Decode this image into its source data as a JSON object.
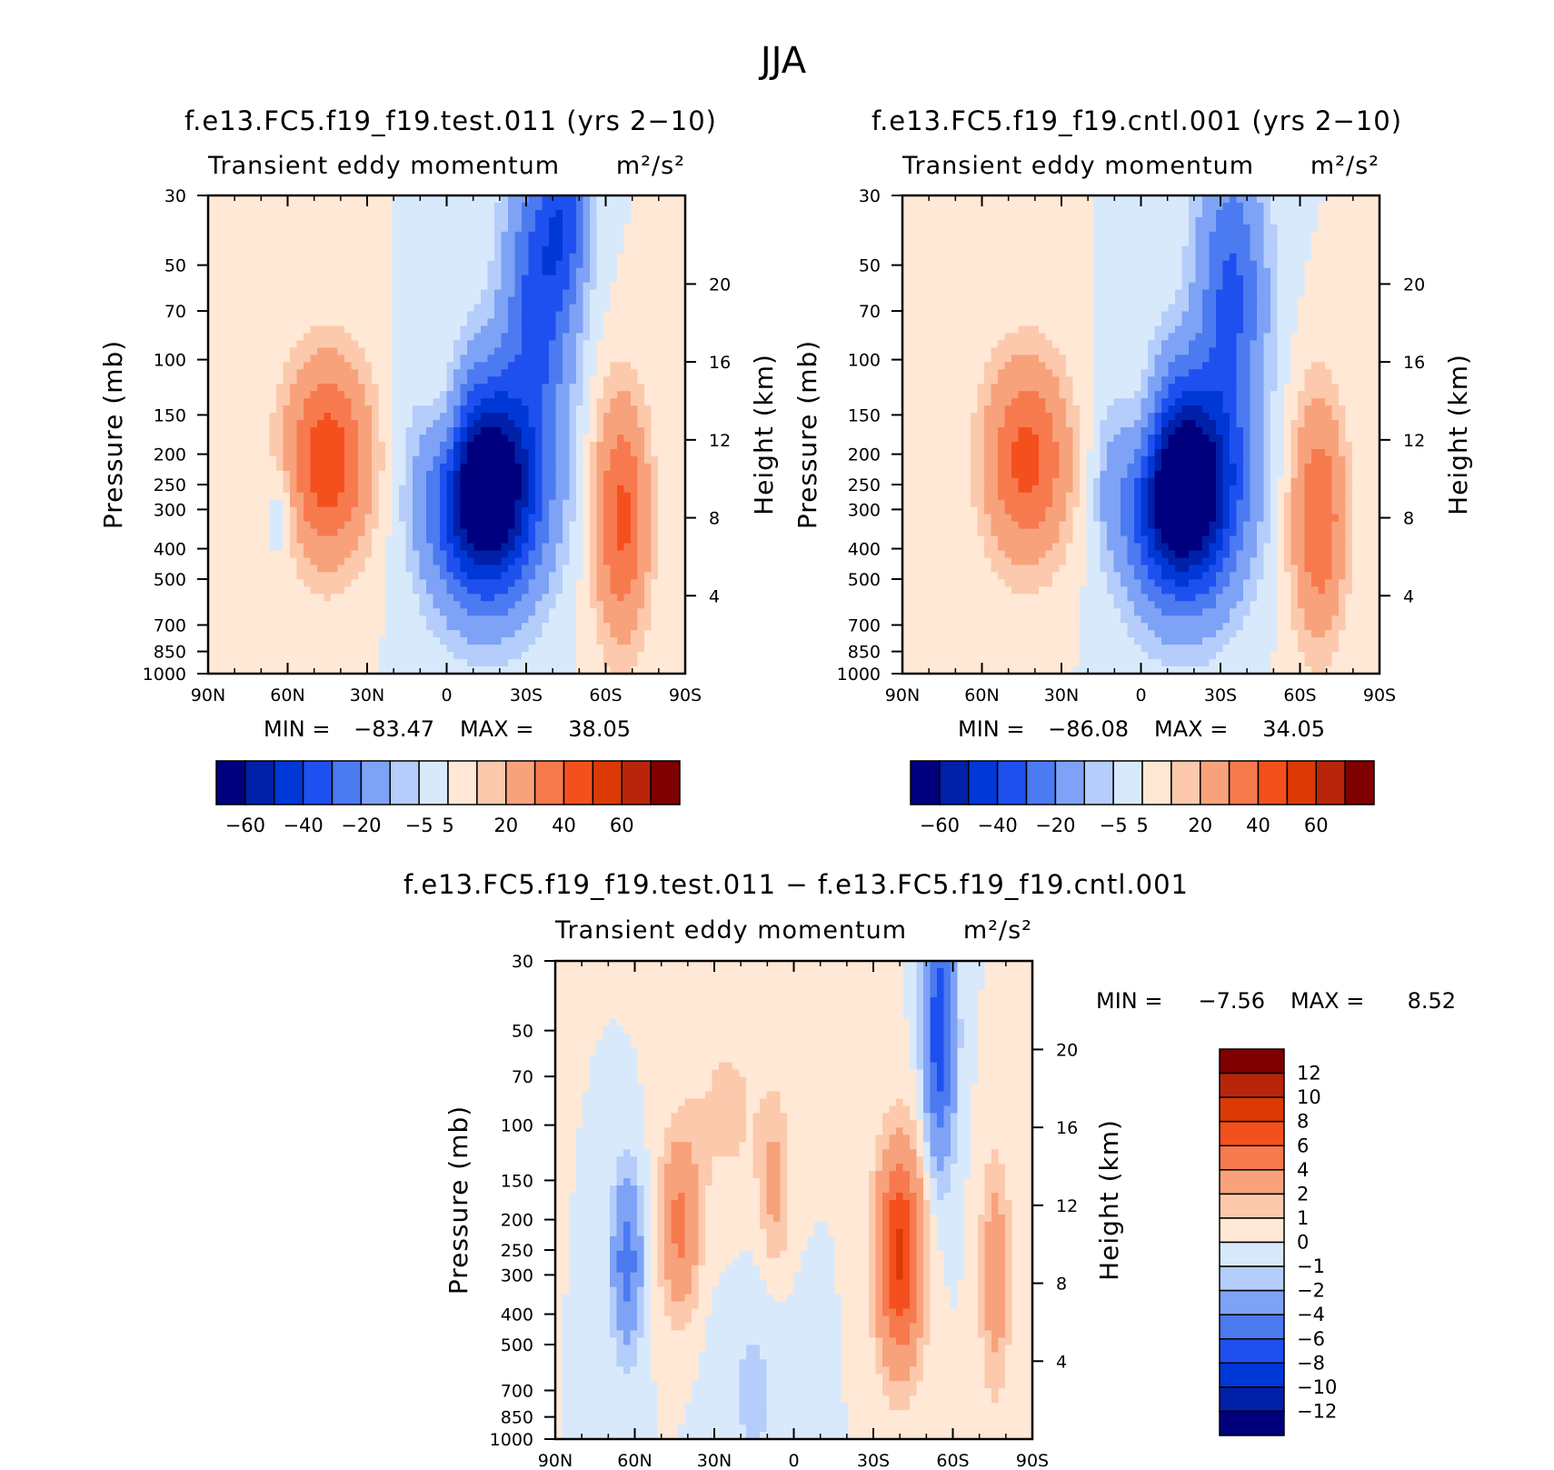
{
  "figure_title": "JJA",
  "colors": {
    "diverging_17": [
      "#00007f",
      "#0020a8",
      "#0038d8",
      "#1e50f0",
      "#4c7af0",
      "#7ea2f5",
      "#b4cdfa",
      "#d9e9fc",
      "#ffe8d5",
      "#fcc9ad",
      "#f8a27c",
      "#f77a4e",
      "#f4501e",
      "#dc3a05",
      "#b8250a",
      "#7f0000"
    ]
  },
  "chart_data": [
    {
      "type": "contour",
      "id": "test",
      "title": "f.e13.FC5.f19_f19.test.011 (yrs 2−10)",
      "subtitle_left": "Transient eddy momentum",
      "units": "m²/s²",
      "ylabel_left": "Pressure (mb)",
      "ylabel_right": "Height (km)",
      "xticks": [
        "90N",
        "60N",
        "30N",
        "0",
        "30S",
        "60S",
        "90S"
      ],
      "yticks_pressure": [
        30,
        50,
        70,
        100,
        150,
        200,
        250,
        300,
        400,
        500,
        700,
        850,
        1000
      ],
      "yticks_height": [
        20,
        16,
        12,
        8,
        4
      ],
      "min_label": "MIN =",
      "min_value": "−83.47",
      "max_label": "MAX =",
      "max_value": "38.05",
      "colorbar_orientation": "horizontal",
      "colorbar_labels": [
        "−60",
        "−40",
        "−20",
        "−5",
        "5",
        "20",
        "40",
        "60"
      ],
      "features": [
        {
          "lat": -15,
          "p": 260,
          "amp": -85,
          "sx": 14,
          "sy": 0.55
        },
        {
          "lat": -35,
          "p": 60,
          "amp": -35,
          "sx": 9,
          "sy": 0.7
        },
        {
          "lat": -45,
          "p": 35,
          "amp": -25,
          "sx": 6,
          "sy": 0.4
        },
        {
          "lat": 45,
          "p": 210,
          "amp": 38,
          "sx": 11,
          "sy": 0.5
        },
        {
          "lat": -66,
          "p": 320,
          "amp": 33,
          "sx": 7,
          "sy": 0.6
        },
        {
          "lat": 0,
          "p": 160,
          "amp": 16,
          "sx": 6,
          "sy": 0.38
        },
        {
          "lat": 62,
          "p": 300,
          "amp": -9,
          "sx": 4,
          "sy": 0.25
        }
      ]
    },
    {
      "type": "contour",
      "id": "cntl",
      "title": "f.e13.FC5.f19_f19.cntl.001 (yrs 2−10)",
      "subtitle_left": "Transient eddy momentum",
      "units": "m²/s²",
      "ylabel_left": "Pressure (mb)",
      "ylabel_right": "Height (km)",
      "xticks": [
        "90N",
        "60N",
        "30N",
        "0",
        "30S",
        "60S",
        "90S"
      ],
      "yticks_pressure": [
        30,
        50,
        70,
        100,
        150,
        200,
        250,
        300,
        400,
        500,
        700,
        850,
        1000
      ],
      "yticks_height": [
        20,
        16,
        12,
        8,
        4
      ],
      "min_label": "MIN =",
      "min_value": "−86.08",
      "max_label": "MAX =",
      "max_value": "34.05",
      "colorbar_orientation": "horizontal",
      "colorbar_labels": [
        "−60",
        "−40",
        "−20",
        "−5",
        "5",
        "20",
        "40",
        "60"
      ],
      "features": [
        {
          "lat": -16,
          "p": 260,
          "amp": -88,
          "sx": 14,
          "sy": 0.55
        },
        {
          "lat": -34,
          "p": 60,
          "amp": -32,
          "sx": 9,
          "sy": 0.7
        },
        {
          "lat": 43,
          "p": 210,
          "amp": 34,
          "sx": 11,
          "sy": 0.5
        },
        {
          "lat": -67,
          "p": 320,
          "amp": 30,
          "sx": 7,
          "sy": 0.6
        },
        {
          "lat": -1,
          "p": 165,
          "amp": 17,
          "sx": 6,
          "sy": 0.38
        },
        {
          "lat": 12,
          "p": 260,
          "amp": -5,
          "sx": 3,
          "sy": 0.3
        }
      ]
    },
    {
      "type": "contour",
      "id": "diff",
      "title": "f.e13.FC5.f19_f19.test.011 − f.e13.FC5.f19_f19.cntl.001",
      "subtitle_left": "Transient eddy momentum",
      "units": "m²/s²",
      "ylabel_left": "Pressure (mb)",
      "ylabel_right": "Height (km)",
      "xticks": [
        "90N",
        "60N",
        "30N",
        "0",
        "30S",
        "60S",
        "90S"
      ],
      "yticks_pressure": [
        30,
        50,
        70,
        100,
        150,
        200,
        250,
        300,
        400,
        500,
        700,
        850,
        1000
      ],
      "yticks_height": [
        20,
        16,
        12,
        8,
        4
      ],
      "min_label": "MIN =",
      "min_value": "−7.56",
      "max_label": "MAX =",
      "max_value": "8.52",
      "colorbar_orientation": "vertical",
      "colorbar_labels": [
        "12",
        "10",
        "8",
        "6",
        "4",
        "2",
        "1",
        "0",
        "−1",
        "−2",
        "−4",
        "−6",
        "−8",
        "−10",
        "−12"
      ],
      "features": [
        {
          "lat": -40,
          "p": 260,
          "amp": 8.5,
          "sx": 6,
          "sy": 0.55
        },
        {
          "lat": -55,
          "p": 50,
          "amp": -7.5,
          "sx": 4,
          "sy": 0.65
        },
        {
          "lat": 63,
          "p": 270,
          "amp": -5,
          "sx": 4,
          "sy": 0.45
        },
        {
          "lat": 43,
          "p": 210,
          "amp": 4.5,
          "sx": 5,
          "sy": 0.45
        },
        {
          "lat": -76,
          "p": 300,
          "amp": 3.2,
          "sx": 4,
          "sy": 0.6
        },
        {
          "lat": 7,
          "p": 160,
          "amp": 2.3,
          "sx": 4,
          "sy": 0.45
        },
        {
          "lat": 15,
          "p": 700,
          "amp": -1.2,
          "sx": 10,
          "sy": 0.6
        },
        {
          "lat": 25,
          "p": 90,
          "amp": 1.2,
          "sx": 12,
          "sy": 0.6
        }
      ]
    }
  ]
}
